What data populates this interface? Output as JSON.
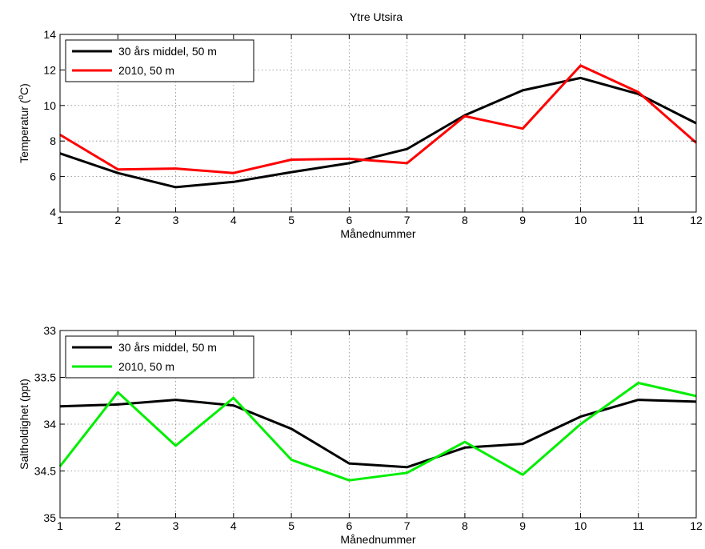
{
  "figure_title": "Ytre Utsira",
  "chart_data": [
    {
      "type": "line",
      "title": "Ytre Utsira",
      "xlabel": "Månednummer",
      "ylabel_main": "Temperatur (",
      "ylabel_sup": "o",
      "ylabel_tail": "C)",
      "xlim": [
        1,
        12
      ],
      "ylim": [
        4,
        14
      ],
      "xticks": [
        "1",
        "2",
        "3",
        "4",
        "5",
        "6",
        "7",
        "8",
        "9",
        "10",
        "11",
        "12"
      ],
      "yticks": [
        "4",
        "6",
        "8",
        "10",
        "12",
        "14"
      ],
      "ytick_values": [
        4,
        6,
        8,
        10,
        12,
        14
      ],
      "y_reversed": false,
      "grid": true,
      "legend_position": "top-left",
      "x": [
        1,
        2,
        3,
        4,
        5,
        6,
        7,
        8,
        9,
        10,
        11,
        12
      ],
      "series": [
        {
          "name": "30 års middel, 50 m",
          "color": "#000000",
          "values": [
            7.3,
            6.2,
            5.4,
            5.7,
            6.25,
            6.75,
            7.55,
            9.45,
            10.85,
            11.55,
            10.65,
            9.0
          ]
        },
        {
          "name": "2010, 50 m",
          "color": "#ff0000",
          "values": [
            8.35,
            6.4,
            6.45,
            6.2,
            6.95,
            7.0,
            6.75,
            9.4,
            8.7,
            12.25,
            10.75,
            7.9
          ]
        }
      ]
    },
    {
      "type": "line",
      "title": "",
      "xlabel": "Månednummer",
      "ylabel_main": "Saltholdighet (ppt)",
      "ylabel_sup": "",
      "ylabel_tail": "",
      "xlim": [
        1,
        12
      ],
      "ylim": [
        33,
        35
      ],
      "xticks": [
        "1",
        "2",
        "3",
        "4",
        "5",
        "6",
        "7",
        "8",
        "9",
        "10",
        "11",
        "12"
      ],
      "yticks": [
        "33",
        "33.5",
        "34",
        "34.5",
        "35"
      ],
      "ytick_values": [
        33,
        33.5,
        34,
        34.5,
        35
      ],
      "y_reversed": true,
      "grid": true,
      "legend_position": "top-left",
      "x": [
        1,
        2,
        3,
        4,
        5,
        6,
        7,
        8,
        9,
        10,
        11,
        12
      ],
      "series": [
        {
          "name": "30 års middel, 50 m",
          "color": "#000000",
          "values": [
            33.81,
            33.79,
            33.74,
            33.8,
            34.05,
            34.42,
            34.46,
            34.25,
            34.21,
            33.92,
            33.74,
            33.76
          ]
        },
        {
          "name": "2010, 50 m",
          "color": "#00ee00",
          "values": [
            34.45,
            33.66,
            34.23,
            33.72,
            34.38,
            34.6,
            34.52,
            34.19,
            34.54,
            34.0,
            33.56,
            33.7
          ]
        }
      ]
    }
  ]
}
